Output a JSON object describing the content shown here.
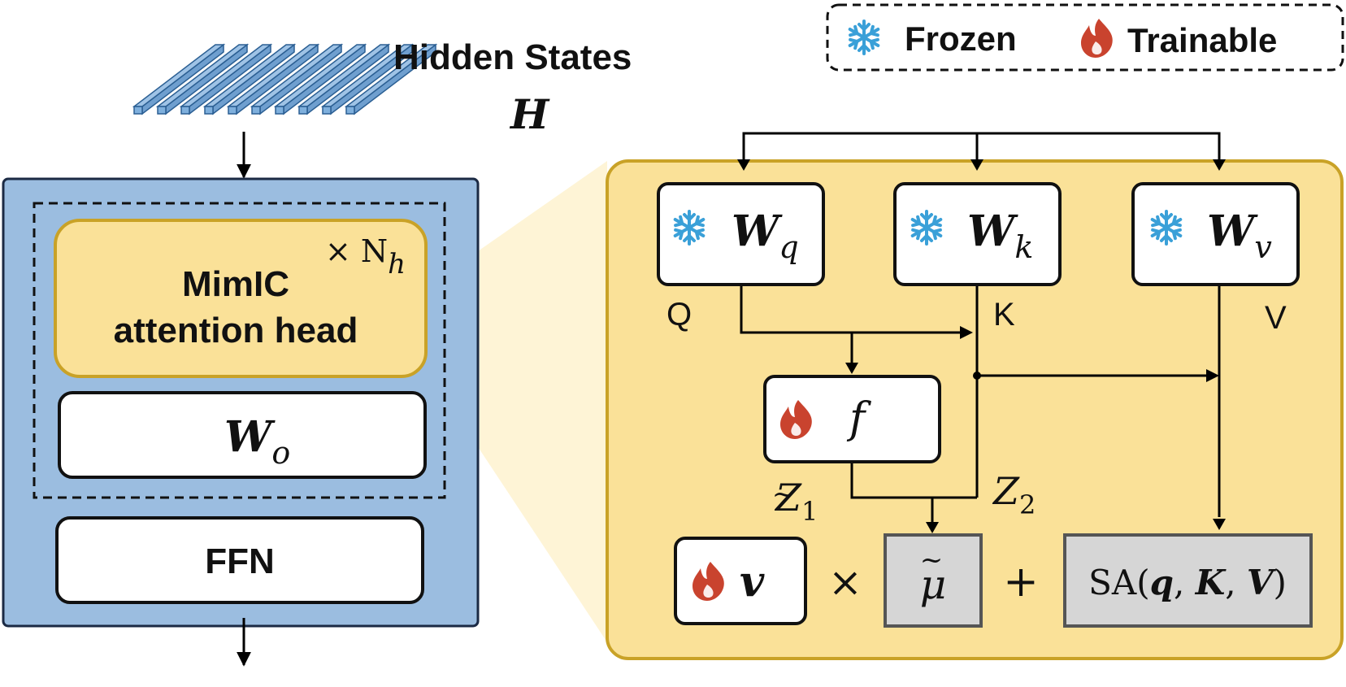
{
  "legend": {
    "frozen_label": "Frozen",
    "trainable_label": "Trainable",
    "frozen_icon": "snowflake-icon",
    "trainable_icon": "flame-icon"
  },
  "input": {
    "title": "Hidden States",
    "symbol": "H"
  },
  "layer": {
    "repeat_label": "× N",
    "repeat_sub": "h",
    "attention_line1": "MimIC",
    "attention_line2": "attention head",
    "wo_main": "W",
    "wo_sub": "o",
    "ffn_label": "FFN"
  },
  "detail": {
    "wq_main": "W",
    "wq_sub": "q",
    "wk_main": "W",
    "wk_sub": "k",
    "wv_main": "W",
    "wv_sub": "v",
    "q_label": "Q",
    "k_label": "K",
    "v_label": "V",
    "f_label": "f",
    "z1_main": "Z",
    "z1_sub": "1",
    "z1_accent": "~",
    "z2_main": "Z",
    "z2_sub": "2",
    "v_vec": "v",
    "times": "×",
    "mu_label": "μ",
    "mu_accent": "~",
    "plus": "+",
    "sa_prefix": "SA(",
    "sa_q": "q",
    "sa_sep1": ", ",
    "sa_k": "K",
    "sa_sep2": ", ",
    "sa_v": "V",
    "sa_suffix": ")"
  },
  "colors": {
    "outer_blue": "#9bbde0",
    "yellow": "#fae198",
    "yellow_border": "#c9a227",
    "gray_box": "#d6d6d6",
    "snow": "#3aa0d8",
    "flame": "#c9432e",
    "slab": "#9fc3e6"
  }
}
